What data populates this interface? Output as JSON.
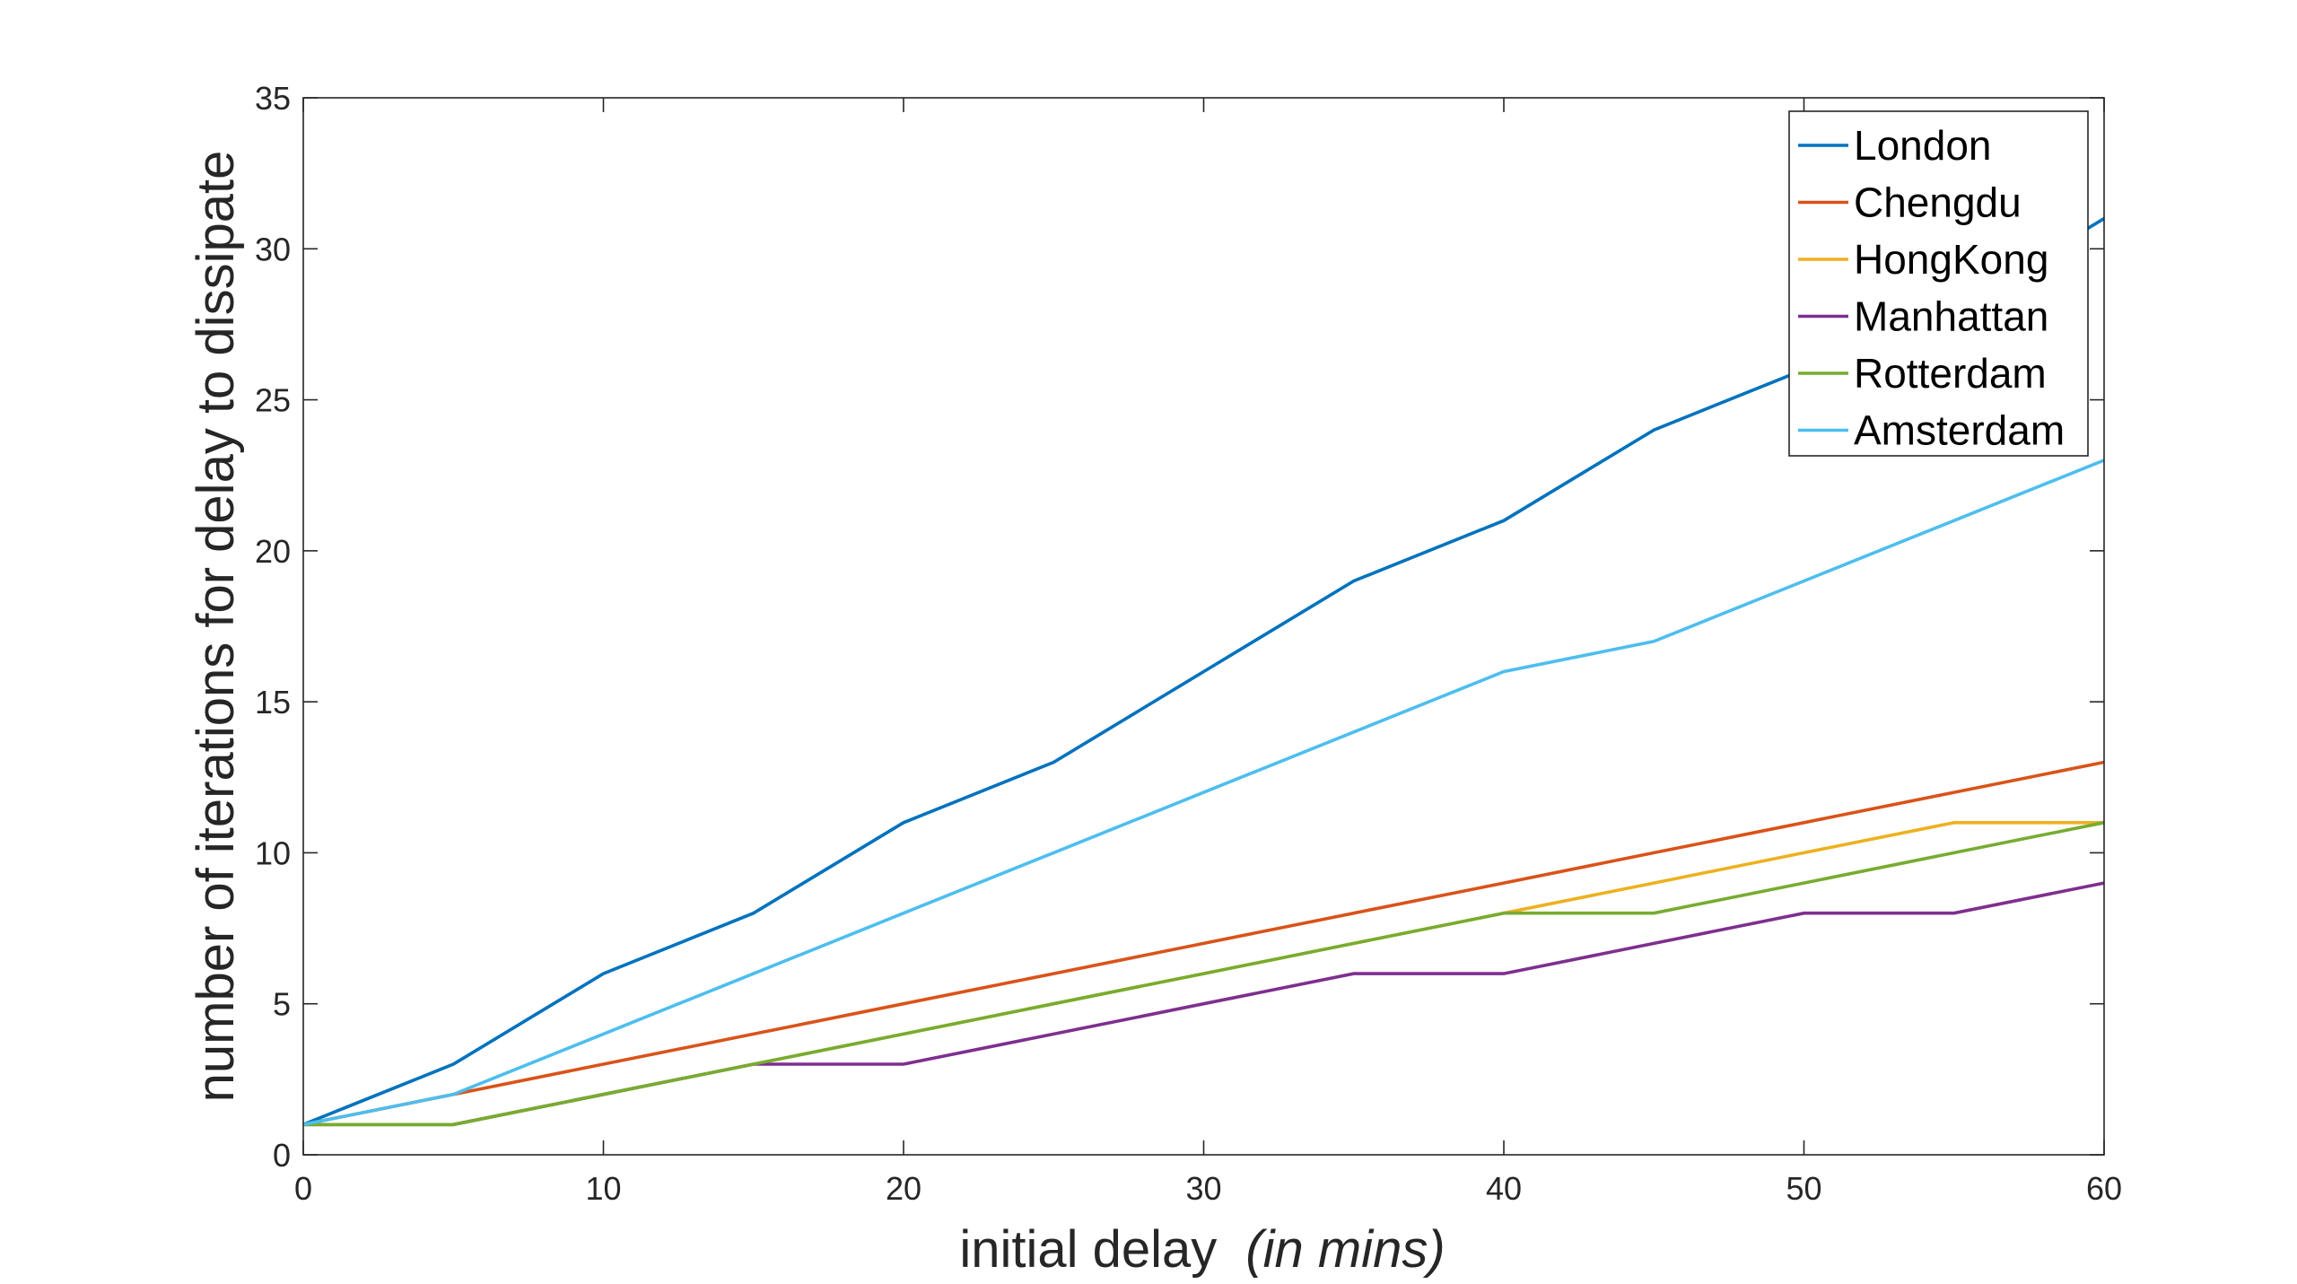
{
  "chart_data": {
    "type": "line",
    "title": "",
    "xlabel": "initial delay",
    "xlabel_unit": "(in mins)",
    "ylabel": "number of iterations for delay to dissipate",
    "xlim": [
      0,
      60
    ],
    "ylim": [
      0,
      35
    ],
    "xticks": [
      0,
      10,
      20,
      30,
      40,
      50,
      60
    ],
    "yticks": [
      0,
      5,
      10,
      15,
      20,
      25,
      30,
      35
    ],
    "grid": false,
    "legend_position": "top-right",
    "x": [
      0,
      5,
      10,
      15,
      20,
      25,
      30,
      35,
      40,
      45,
      50,
      55,
      60
    ],
    "series": [
      {
        "name": "London",
        "color": "#0072BD",
        "values": [
          1,
          3,
          6,
          8,
          11,
          13,
          16,
          19,
          21,
          24,
          26,
          28,
          31
        ]
      },
      {
        "name": "Chengdu",
        "color": "#D95319",
        "values": [
          1,
          2,
          3,
          4,
          5,
          6,
          7,
          8,
          9,
          10,
          11,
          12,
          13
        ]
      },
      {
        "name": "HongKong",
        "color": "#EDB120",
        "values": [
          1,
          1,
          2,
          3,
          4,
          5,
          6,
          7,
          8,
          9,
          10,
          11,
          11
        ]
      },
      {
        "name": "Manhattan",
        "color": "#7E2F8E",
        "values": [
          1,
          1,
          2,
          3,
          3,
          4,
          5,
          6,
          6,
          7,
          8,
          8,
          9
        ]
      },
      {
        "name": "Rotterdam",
        "color": "#77AC30",
        "values": [
          1,
          1,
          2,
          3,
          4,
          5,
          6,
          7,
          8,
          8,
          9,
          10,
          11
        ]
      },
      {
        "name": "Amsterdam",
        "color": "#4DBEEE",
        "values": [
          1,
          2,
          4,
          6,
          8,
          10,
          12,
          14,
          16,
          17,
          19,
          21,
          23
        ]
      }
    ]
  }
}
